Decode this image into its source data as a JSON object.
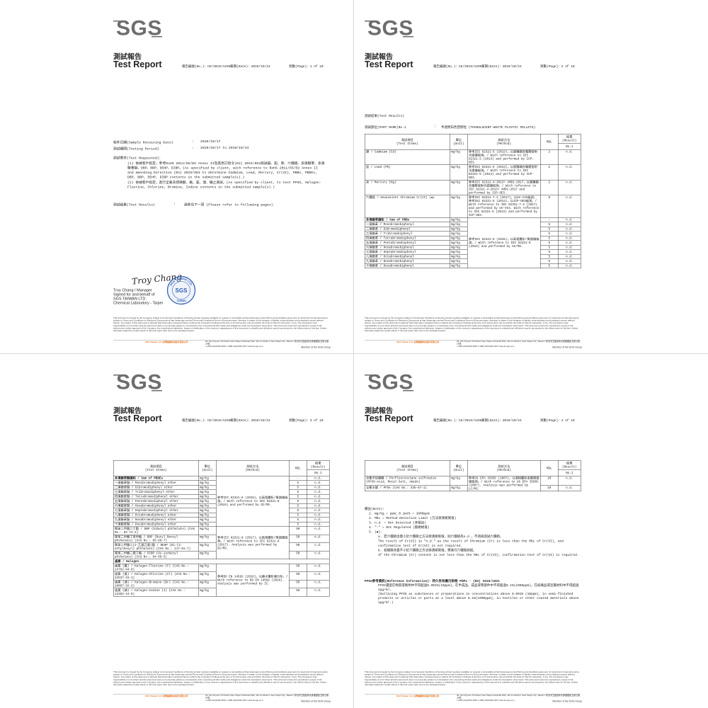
{
  "logo": "SGS",
  "header": {
    "title_zh": "測試報告",
    "title_en": "Test Report",
    "report_no": "報告編號(No.)：CE/2019/A2953",
    "date": "日期(Date)：2019/10/24"
  },
  "table_head": {
    "cols": [
      [
        "測試項目",
        "(Test Items)"
      ],
      [
        "單位",
        "(Unit)"
      ],
      [
        "測試方法",
        "(Method)"
      ],
      [
        "MDL"
      ],
      [
        "結果",
        "(Result)"
      ]
    ],
    "sub": "No.1"
  },
  "footer": {
    "disclaimer": "This document is issued by the Company subject to its General Conditions of Service printed overleaf, available on request or accessible at http://www.sgs.com/en/Terms-and-Conditions.aspx and, for electronic format documents, subject to Terms and Conditions for Electronic Documents at http://www.sgs.com/en/Terms-and-Conditions/Terms-e-Document.aspx. Attention is drawn to the limitation of liability, indemnification and jurisdiction issues defined therein. Any holder of this document is advised that information contained hereon reflects the Company's findings at the time of its intervention only and within the limits of Client's instruction, if any. The Company's sole responsibility is to its Client and this document does not exonerate parties to a transaction from exercising all their rights and obligations under the transaction documents. This document cannot be reproduced, except in full, without prior written approval of the Company. Any unauthorized alteration, forgery or falsification of the content or appearance of this document is unlawful and offenders may be prosecuted to the fullest extent of the law. Unless otherwise stated the results shown in this test report refer only to the sample(s) tested.",
    "company": "SGS Taiwan Ltd. 台灣檢驗科技股份有限公司",
    "address": "25, Wu Chyuan 7th Road, New Taipei Industrial Park, Wu Ku District, New Taipei City, Taiwan / 新北市五股區新北產業園區五權七路25號",
    "contact": "t +886 (02)2299-3939   f +886 (02)2299-3237   www.tw.sgs.com",
    "member": "Member of the SGS Group"
  },
  "pages": [
    {
      "page_no": "頁數(Page)：1 of 10",
      "info": [
        {
          "label": "收件日期(Sample Receiving Date)",
          "sep": ":",
          "value": "2019/10/17"
        },
        {
          "label": "測試期間(Testing Period)",
          "sep": ":",
          "value": "2019/10/17 to 2019/10/24"
        }
      ],
      "requested": {
        "title": "測試需求(Test Requested)：",
        "items": [
          "(1) 依據客戶指定，參考RoHS 2011/65/EU Annex II及其修訂指令(EU) 2015/863測試鎘、鉛、汞、六價鉻、多溴聯苯、多溴聯苯醚、DBP、BBP、DEHP、DIBP。(As specified by client, with reference to RoHS 2011/65/EU Annex II and amending Directive (EU) 2015/863 to determine Cadmium, Lead, Mercury, Cr(VI), PBBs, PBDEs, DBP, BBP, DEHP, DIBP contents in the submitted sample(s).)",
          "(2) 依據客戶指定，進行全氟辛烷磺酸、氟、氯、溴、碘之測試。(As specified by client, to test PFOS, Halogen-Fluorine, Chlorine, Bromine, Iodine contents in the submitted sample(s).)"
        ]
      },
      "results": {
        "label": "測試結果(Test Results)",
        "sep": ":",
        "value": "請參見下一頁 (Please refer to following pages)."
      },
      "signature": {
        "script": "Troy Chang",
        "name": "Troy Chang / Manager",
        "lines": [
          "Signed for and behalf of",
          "SGS TAIWAN LTD.",
          "Chemical Laboratory - Taipei"
        ],
        "stamp_ring": "SGS TAIWAN LTD.",
        "stamp_center": "SGS",
        "stamp_bottom": "TAIWAN"
      }
    },
    {
      "page_no": "頁數(Page)：2 of 10",
      "results_title": "測試結果(Test Results)",
      "part": {
        "label": "測試部位(PART NAME)No.1",
        "sep": ":",
        "value": "半透明白色塑膠粒 (TRANSLUCENT-WHITE PLASTIC PELLETS)"
      },
      "table": [
        {
          "item": "鎘 / Cadmium (Cd)",
          "unit": "mg/kg",
          "method": "參考IEC 62321-5 (2013)，以感應耦合電漿發射光譜儀檢測。/ With reference to IEC 62321-5 (2013) and performed by ICP-OES.",
          "mdl": 2,
          "result": "n.d."
        },
        {
          "item": "鉛 / Lead (Pb)",
          "unit": "mg/kg",
          "method": "參考IEC 62321-5 (2013)，以感應耦合電漿發射光譜儀檢測。/ With reference to IEC 62321-5 (2013) and performed by ICP-OES.",
          "mdl": 2,
          "result": "n.d."
        },
        {
          "item": "汞 / Mercury (Hg)",
          "unit": "mg/kg",
          "method": "參考IEC 62321-4:2013+ AMD1:2017，以感應耦合電漿發射光譜儀檢測。/ With reference to IEC 62321-4:2013+ AMD1:2017 and performed by ICP-OES.",
          "mdl": 2,
          "result": "n.d."
        },
        {
          "item": "六價鉻 / Hexavalent Chromium Cr(VI) (◆)",
          "unit": "mg/kg",
          "method": "參考IEC 62321-7-2 (2017)，以UV-VIS檢測；參考IEC 62321-5 (2013)，以ICP-OES檢測。/ With reference to IEC 62321-7-2 (2017) and performed by UV-VIS. With reference to IEC 62321-5 (2013) and performed by ICP-OES.",
          "mdl": 8,
          "result": "n.d."
        },
        {
          "item": "多溴聯苯總和 / Sum of PBBs",
          "unit": "mg/kg",
          "method": "參考IEC 62321-6 (2015)，以氣相層析/質譜儀檢測。/ With reference to IEC 62321-6 (2015) and performed by GC/MS.",
          "mdl": "-",
          "result": "n.d."
        },
        {
          "item": "一溴聯苯 / Monobromobiphenyl",
          "unit": "mg/kg",
          "mdl": 5,
          "result": "n.d."
        },
        {
          "item": "二溴聯苯 / Dibromobiphenyl",
          "unit": "mg/kg",
          "mdl": 5,
          "result": "n.d."
        },
        {
          "item": "三溴聯苯 / Tribromobiphenyl",
          "unit": "mg/kg",
          "mdl": 5,
          "result": "n.d."
        },
        {
          "item": "四溴聯苯 / Tetrabromobiphenyl",
          "unit": "mg/kg",
          "mdl": 5,
          "result": "n.d."
        },
        {
          "item": "五溴聯苯 / Pentabromobiphenyl",
          "unit": "mg/kg",
          "mdl": 5,
          "result": "n.d."
        },
        {
          "item": "六溴聯苯 / Hexabromobiphenyl",
          "unit": "mg/kg",
          "mdl": 5,
          "result": "n.d."
        },
        {
          "item": "七溴聯苯 / Heptabromobiphenyl",
          "unit": "mg/kg",
          "mdl": 5,
          "result": "n.d."
        },
        {
          "item": "八溴聯苯 / Octabromobiphenyl",
          "unit": "mg/kg",
          "mdl": 5,
          "result": "n.d."
        },
        {
          "item": "九溴聯苯 / Nonabromobiphenyl",
          "unit": "mg/kg",
          "mdl": 5,
          "result": "n.d."
        },
        {
          "item": "十溴聯苯 / Decabromobiphenyl",
          "unit": "mg/kg",
          "mdl": 5,
          "result": "n.d."
        }
      ]
    },
    {
      "page_no": "頁數(Page)：3 of 10",
      "table": [
        {
          "item": "多溴聯苯醚總和 / Sum of PBDEs",
          "unit": "mg/kg",
          "method": "參考IEC 62321-6 (2015)，以氣相層析/質譜儀檢測。/ With reference to IEC 62321-6 (2015) and performed by GC/MS.",
          "mdl": "-",
          "result": "n.d."
        },
        {
          "item": "一溴聯苯醚 / Monobromodiphenyl ether",
          "unit": "mg/kg",
          "mdl": 5,
          "result": "n.d."
        },
        {
          "item": "二溴聯苯醚 / Dibromodiphenyl ether",
          "unit": "mg/kg",
          "mdl": 5,
          "result": "n.d."
        },
        {
          "item": "三溴聯苯醚 / Tribromodiphenyl ether",
          "unit": "mg/kg",
          "mdl": 5,
          "result": "n.d."
        },
        {
          "item": "四溴聯苯醚 / Tetrabromodiphenyl ether",
          "unit": "mg/kg",
          "mdl": 5,
          "result": "n.d."
        },
        {
          "item": "五溴聯苯醚 / Pentabromodiphenyl ether",
          "unit": "mg/kg",
          "mdl": 5,
          "result": "n.d."
        },
        {
          "item": "六溴聯苯醚 / Hexabromodiphenyl ether",
          "unit": "mg/kg",
          "mdl": 5,
          "result": "n.d."
        },
        {
          "item": "七溴聯苯醚 / Heptabromodiphenyl ether",
          "unit": "mg/kg",
          "mdl": 5,
          "result": "n.d."
        },
        {
          "item": "八溴聯苯醚 / Octabromodiphenyl ether",
          "unit": "mg/kg",
          "mdl": 5,
          "result": "n.d."
        },
        {
          "item": "九溴聯苯醚 / Nonabromodiphenyl ether",
          "unit": "mg/kg",
          "mdl": 5,
          "result": "n.d."
        },
        {
          "item": "十溴聯苯醚 / Decabromodiphenyl ether",
          "unit": "mg/kg",
          "mdl": 5,
          "result": "n.d."
        },
        {
          "item": "鄰苯二甲酸二丁酯 / DBP (Dibutyl phthalate) (CAS No.: 84-74-2)",
          "unit": "mg/kg",
          "method": "參考IEC 62321-8 (2017)，以氣相層析/質譜儀檢測。/ With reference to IEC 62321-8 (2017). Analysis was performed by GC/MS.",
          "mdl": 50,
          "result": "n.d."
        },
        {
          "item": "鄰苯二甲酸丁苯甲酯 / BBP (Butyl Benzyl phthalate) (CAS No.: 85-68-7)",
          "unit": "mg/kg",
          "mdl": 50,
          "result": "n.d."
        },
        {
          "item": "鄰苯二甲酸二(2-乙基己基)酯 / DEHP (Di-(2-ethylhexyl) phthalate) (CAS No.: 117-81-7)",
          "unit": "mg/kg",
          "mdl": 50,
          "result": "n.d."
        },
        {
          "item": "鄰苯二甲酸二異丁酯 / DIBP (Di-isobutyl phthalate) (CAS No.: 84-69-5)",
          "unit": "mg/kg",
          "mdl": 50,
          "result": "n.d."
        },
        {
          "heading": "鹵素 / Halogen"
        },
        {
          "item": "鹵素 (氟) / Halogen-Fluorine (F) (CAS No.: 14762-94-8)",
          "unit": "mg/kg",
          "method": "參考BS EN 14582 (2016)，以離子層析儀分析。/ With reference to BS EN 14582 (2016). Analysis was performed by IC.",
          "mdl": 50,
          "result": "n.d."
        },
        {
          "item": "鹵素 (氯) / Halogen-Chlorine (Cl) (CAS No.: 22537-15-1)",
          "unit": "mg/kg",
          "mdl": 50,
          "result": "n.d."
        },
        {
          "item": "鹵素 (溴) / Halogen-Bromine (Br) (CAS No.: 10097-32-2)",
          "unit": "mg/kg",
          "mdl": 50,
          "result": "n.d."
        },
        {
          "item": "鹵素 (碘) / Halogen-Iodine (I) (CAS No.: 14362-44-8)",
          "unit": "mg/kg",
          "mdl": 50,
          "result": "n.d."
        }
      ]
    },
    {
      "page_no": "頁數(Page)：4 of 10",
      "table": [
        {
          "item": "全氟辛烷磺酸 / Perfluorooctane sulfonates (PFOS-Acid, Metal Salt, Amide)",
          "unit": "mg/kg",
          "method": "參考US EPA 3550C (2007)，以液相層析串聯質譜儀檢測。/ With reference to US EPA 3550C (2007). Analysis was performed by LC/MS.",
          "mdl": 10,
          "result": "n.d."
        },
        {
          "item": "全氟辛酸 / PFOA (CAS No.: 335-67-1)",
          "unit": "mg/kg",
          "mdl": 10,
          "result": "n.d."
        }
      ],
      "notes": {
        "title": "備註(Note)：",
        "items": [
          "1. mg/kg = ppm；0.1wt% = 1000ppm",
          "2. MDL = Method Detection Limit (方法偵測極限值)",
          "3. n.d. = Not Detected (未檢出)",
          "4. \"-\" = Not Regulated (無規格值)",
          "5. (◆)："
        ],
        "sub": [
          "a. 若六價鉻含量小於六價鉻之方法偵測極限值，則六價鉻為n.d.，不須再測試六價鉻。",
          "The result of Cr(VI) is \"n.d.\" as the result of Chromium (Cr) is less than the MDL of Cr(VI), and confirmation test of Cr(VI) is not required.",
          "b. 若總鉻含量不小於六價鉻之方法偵測極限值，需進行六價鉻測試。",
          "If the Chromium (Cr) content is not less than the MDL of Cr(VI), confirmation test of Cr(VI) is required."
        ]
      },
      "pfos": {
        "title": "PFOS參考資訊(Reference Information)：持久性有機污染物 POPs - (EU) 2019/1021",
        "lines": [
          "PFOS濃度在物質或製劑中不得超過0.001%(10ppm)，在半成品、成品或零部件中不得超過0.1%(1000ppm)，在紡織品或塗層材料中不得超過1μg/m²。",
          "(Outlining PFOS as substances or preparations in concentrations above 0.001% (10ppm), in semi-finished products or articles or parts at a level above 0.1%(1000ppm), in textiles or other coated materials above 1μg/m².)"
        ]
      }
    }
  ]
}
